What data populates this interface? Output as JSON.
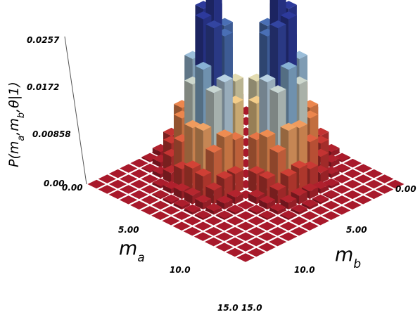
{
  "chart_data": {
    "type": "3d-bar",
    "title": "",
    "xlabel": "m_a",
    "ylabel": "m_b",
    "zlabel": "P(m_a, m_b, θ | 1)",
    "xlim": [
      0,
      15
    ],
    "ylim": [
      0,
      15
    ],
    "zlim": [
      0,
      0.0257
    ],
    "z_ticks": [
      "0.00",
      "0.00858",
      "0.0172",
      "0.0257"
    ],
    "x_ticks": [
      "0.00",
      "5.00",
      "10.0",
      "15.0"
    ],
    "y_ticks": [
      "0.00",
      "5.00",
      "10.0",
      "15.0"
    ],
    "grid": true,
    "colormap": "red-yellow-blue",
    "colors": {
      "floor": "#a8192b",
      "grid_line": "#ffffff",
      "low": "#a8192b",
      "mid_low": "#ee8a4f",
      "mid": "#f6e09a",
      "mid_high": "#bcd4e4",
      "high": "#5f96c8",
      "peak": "#2d3a9c"
    },
    "distribution": {
      "description_ma_peak": 4,
      "description_mb_peak": 4,
      "peak_value": 0.0257
    }
  }
}
